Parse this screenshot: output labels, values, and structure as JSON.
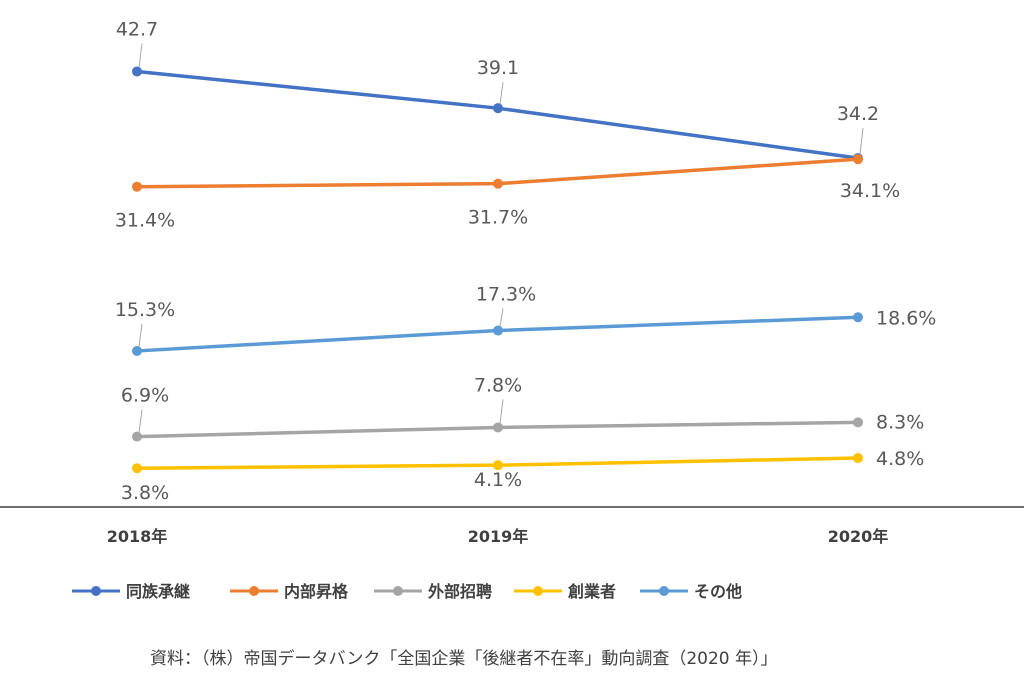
{
  "chart_data": {
    "type": "line",
    "categories": [
      "2018年",
      "2019年",
      "2020年"
    ],
    "ylim": [
      0,
      45
    ],
    "grid": false,
    "legend_position": "bottom",
    "series": [
      {
        "name": "同族承継",
        "color": "#4472C4",
        "values": [
          42.7,
          39.1,
          34.2
        ],
        "labels": [
          "42.7",
          "39.1",
          "34.2"
        ]
      },
      {
        "name": "内部昇格",
        "color": "#ED7D31",
        "values": [
          31.4,
          31.7,
          34.1
        ],
        "labels": [
          "31.4%",
          "31.7%",
          "34.1%"
        ]
      },
      {
        "name": "外部招聘",
        "color": "#A5A5A5",
        "values": [
          6.9,
          7.8,
          8.3
        ],
        "labels": [
          "6.9%",
          "7.8%",
          "8.3%"
        ]
      },
      {
        "name": "創業者",
        "color": "#FFC000",
        "values": [
          3.8,
          4.1,
          4.8
        ],
        "labels": [
          "3.8%",
          "4.1%",
          "4.8%"
        ]
      },
      {
        "name": "その他",
        "color": "#5B9BD5",
        "values": [
          15.3,
          17.3,
          18.6
        ],
        "labels": [
          "15.3%",
          "17.3%",
          "18.6%"
        ]
      }
    ]
  },
  "source_note": "資料：（株）帝国データバンク「全国企業「後継者不在率」動向調査（2020 年）」"
}
